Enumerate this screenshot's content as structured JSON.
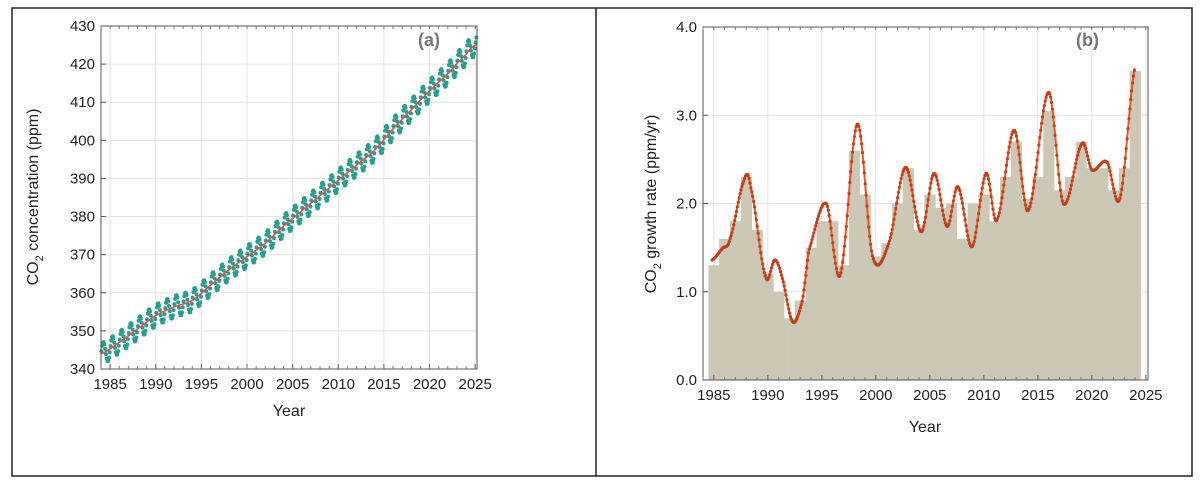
{
  "chart_data": [
    {
      "type": "line",
      "panel_label": "(a)",
      "xlabel": "Year",
      "ylabel_main": "CO",
      "ylabel_sub": "2",
      "ylabel_rest": " concentration (ppm)",
      "xlim": [
        1984,
        2025.2
      ],
      "ylim": [
        340,
        430
      ],
      "xticks": [
        1985,
        1990,
        1995,
        2000,
        2005,
        2010,
        2015,
        2020,
        2025
      ],
      "yticks": [
        340,
        350,
        360,
        370,
        380,
        390,
        400,
        410,
        420,
        430
      ],
      "grid": true,
      "colors": {
        "monthly": "#2a9d8f",
        "trend": "#d9534f"
      },
      "trend": {
        "x": [
          1984,
          1986,
          1988,
          1990,
          1992,
          1994,
          1996,
          1998,
          2000,
          2002,
          2004,
          2006,
          2008,
          2010,
          2012,
          2014,
          2016,
          2018,
          2020,
          2022,
          2024,
          2025
        ],
        "y": [
          344.0,
          347.0,
          350.5,
          354.0,
          356.3,
          358.0,
          362.0,
          366.0,
          369.5,
          373.0,
          377.5,
          381.5,
          385.5,
          389.5,
          393.5,
          397.5,
          403.0,
          408.0,
          413.0,
          417.5,
          422.5,
          425.0
        ]
      },
      "seasonal_amplitude_ppm": 3.2
    },
    {
      "type": "bar",
      "panel_label": "(b)",
      "xlabel": "Year",
      "ylabel_main": "CO",
      "ylabel_sub": "2",
      "ylabel_rest": " growth rate (ppm/yr)",
      "xlim": [
        1984,
        2025.2
      ],
      "ylim": [
        0,
        4
      ],
      "xticks": [
        1985,
        1990,
        1995,
        2000,
        2005,
        2010,
        2015,
        2020,
        2025
      ],
      "yticks": [
        "0.0",
        "1.0",
        "2.0",
        "3.0",
        "4.0"
      ],
      "grid": true,
      "colors": {
        "bars": "#c9c5b1",
        "smoothed": "#e05a2b"
      },
      "categories": [
        1985,
        1986,
        1987,
        1988,
        1989,
        1990,
        1991,
        1992,
        1993,
        1994,
        1995,
        1996,
        1997,
        1998,
        1999,
        2000,
        2001,
        2002,
        2003,
        2004,
        2005,
        2006,
        2007,
        2008,
        2009,
        2010,
        2011,
        2012,
        2013,
        2014,
        2015,
        2016,
        2017,
        2018,
        2019,
        2020,
        2021,
        2022,
        2023,
        2024
      ],
      "values": [
        1.3,
        1.6,
        1.8,
        2.3,
        1.7,
        1.2,
        1.0,
        0.7,
        0.9,
        1.5,
        1.8,
        1.8,
        1.3,
        2.6,
        2.1,
        1.4,
        1.55,
        2.0,
        2.4,
        1.7,
        2.1,
        1.95,
        2.0,
        1.6,
        2.0,
        2.1,
        1.8,
        2.3,
        2.7,
        2.05,
        2.3,
        3.05,
        2.15,
        2.3,
        2.7,
        2.4,
        2.4,
        2.15,
        2.4,
        3.5
      ],
      "smoothed": {
        "x": [
          1984.85,
          1985.8,
          1986.5,
          1987.8,
          1988.4,
          1989.8,
          1990.65,
          1991.3,
          1992.3,
          1993.2,
          1993.8,
          1995.4,
          1996.7,
          1998.3,
          1999.7,
          2001.2,
          2002.75,
          2004.2,
          2005.4,
          2006.6,
          2007.6,
          2008.9,
          2010.2,
          2011.2,
          2012.8,
          2014.1,
          2016.0,
          2017.35,
          2019.1,
          2020.0,
          2021.4,
          2022.6,
          2024.0
        ],
        "y": [
          1.36,
          1.49,
          1.6,
          2.26,
          2.19,
          1.17,
          1.36,
          1.17,
          0.66,
          0.9,
          1.47,
          2.0,
          1.19,
          2.9,
          1.4,
          1.55,
          2.41,
          1.68,
          2.34,
          1.74,
          2.19,
          1.51,
          2.34,
          1.81,
          2.83,
          1.92,
          3.26,
          2.0,
          2.68,
          2.38,
          2.47,
          2.06,
          3.55
        ]
      }
    }
  ]
}
